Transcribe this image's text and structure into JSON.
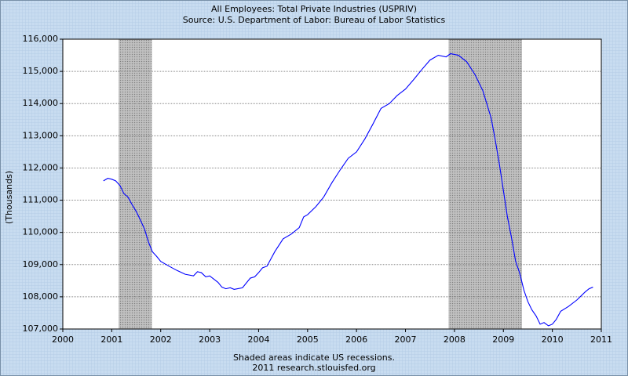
{
  "chart_data": {
    "type": "line",
    "title": "All Employees: Total Private Industries (USPRIV)",
    "subtitle": "Source: U.S. Department of Labor: Bureau of Labor Statistics",
    "y_label": "(Thousands)",
    "notes": [
      "Shaded areas indicate US recessions.",
      "2011 research.stlouisfed.org"
    ],
    "color": "#0000ff",
    "recessions": [
      [
        2001.14,
        2001.82
      ],
      [
        2007.88,
        2009.38
      ]
    ],
    "x": [
      2000.83,
      2000.92,
      2001.0,
      2001.08,
      2001.17,
      2001.25,
      2001.33,
      2001.42,
      2001.5,
      2001.58,
      2001.67,
      2001.75,
      2001.83,
      2001.92,
      2002.0,
      2002.17,
      2002.33,
      2002.5,
      2002.67,
      2002.75,
      2002.83,
      2002.92,
      2003.0,
      2003.17,
      2003.25,
      2003.33,
      2003.42,
      2003.5,
      2003.67,
      2003.83,
      2003.92,
      2004.0,
      2004.08,
      2004.17,
      2004.33,
      2004.5,
      2004.67,
      2004.83,
      2004.92,
      2005.0,
      2005.17,
      2005.33,
      2005.5,
      2005.67,
      2005.83,
      2006.0,
      2006.17,
      2006.33,
      2006.5,
      2006.67,
      2006.83,
      2007.0,
      2007.17,
      2007.33,
      2007.5,
      2007.67,
      2007.83,
      2007.92,
      2008.08,
      2008.25,
      2008.42,
      2008.58,
      2008.75,
      2008.83,
      2008.92,
      2009.0,
      2009.08,
      2009.17,
      2009.25,
      2009.33,
      2009.42,
      2009.5,
      2009.58,
      2009.67,
      2009.75,
      2009.83,
      2009.92,
      2010.0,
      2010.08,
      2010.17,
      2010.33,
      2010.5,
      2010.67,
      2010.75,
      2010.83
    ],
    "values": [
      111600,
      111680,
      111650,
      111600,
      111450,
      111200,
      111100,
      110850,
      110650,
      110400,
      110100,
      109700,
      109400,
      109250,
      109100,
      108950,
      108820,
      108700,
      108650,
      108780,
      108750,
      108620,
      108650,
      108450,
      108300,
      108250,
      108280,
      108230,
      108280,
      108580,
      108620,
      108750,
      108900,
      108950,
      109400,
      109800,
      109950,
      110150,
      110480,
      110550,
      110800,
      111100,
      111550,
      111950,
      112300,
      112500,
      112900,
      113350,
      113850,
      114000,
      114250,
      114450,
      114750,
      115050,
      115350,
      115500,
      115450,
      115550,
      115500,
      115300,
      114900,
      114400,
      113550,
      112900,
      112100,
      111300,
      110500,
      109800,
      109100,
      108750,
      108200,
      107850,
      107600,
      107400,
      107150,
      107200,
      107100,
      107150,
      107300,
      107550,
      107700,
      107900,
      108150,
      108250,
      108300
    ],
    "xlim": [
      2000,
      2011
    ],
    "xticks": [
      2000,
      2001,
      2002,
      2003,
      2004,
      2005,
      2006,
      2007,
      2008,
      2009,
      2010,
      2011
    ],
    "ylim": [
      107000,
      116000
    ],
    "yticks": [
      {
        "value": 107000,
        "label": "107,000"
      },
      {
        "value": 108000,
        "label": "108,000"
      },
      {
        "value": 109000,
        "label": "109,000"
      },
      {
        "value": 110000,
        "label": "110,000"
      },
      {
        "value": 111000,
        "label": "111,000"
      },
      {
        "value": 112000,
        "label": "112,000"
      },
      {
        "value": 113000,
        "label": "113,000"
      },
      {
        "value": 114000,
        "label": "114,000"
      },
      {
        "value": 115000,
        "label": "115,000"
      },
      {
        "value": 116000,
        "label": "116,000"
      }
    ],
    "grid": true
  }
}
